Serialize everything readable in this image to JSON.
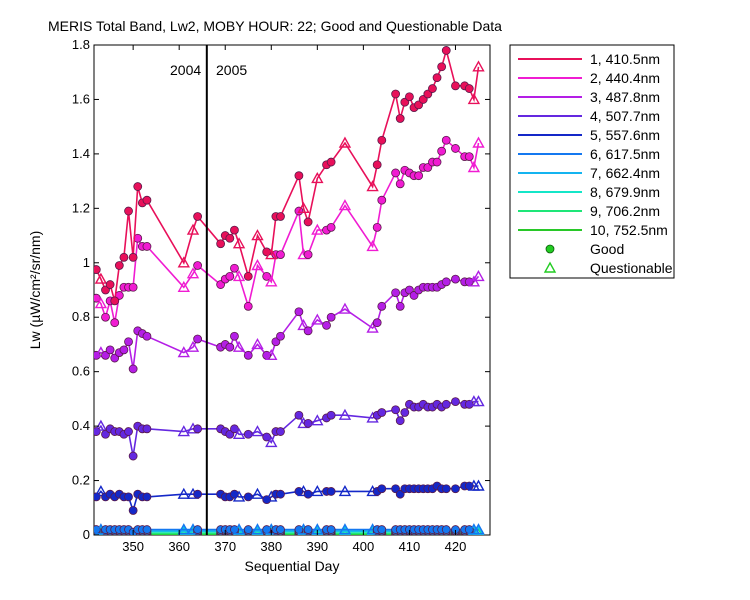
{
  "chart_data": {
    "type": "line",
    "title": "MERIS Total Band,  Lw2, MOBY HOUR: 22;  Good and Questionable Data",
    "xlabel": "Sequential Day",
    "ylabel": "Lw (µW/cm²/sr/nm)",
    "xlim": [
      341.5,
      427.5
    ],
    "ylim": [
      0,
      1.8
    ],
    "xticks": [
      350,
      360,
      370,
      380,
      390,
      400,
      410,
      420
    ],
    "yticks": [
      0,
      0.2,
      0.4,
      0.6,
      0.8,
      1,
      1.2,
      1.4,
      1.6,
      1.8
    ],
    "ytick_labels": [
      "0",
      "0.2",
      "0.4",
      "0.6",
      "0.8",
      "1",
      "1.2",
      "1.4",
      "1.6",
      "1.8"
    ],
    "grid": false,
    "legend_position": "outside-right",
    "year_divider": {
      "x": 366,
      "left_label": "2004",
      "right_label": "2005"
    },
    "x": [
      342,
      343,
      344,
      345,
      346,
      347,
      348,
      349,
      350,
      351,
      352,
      353,
      361,
      363,
      364,
      369,
      370,
      371,
      372,
      373,
      375,
      377,
      379,
      380,
      381,
      382,
      386,
      387,
      388,
      390,
      392,
      393,
      396,
      402,
      403,
      404,
      407,
      408,
      409,
      410,
      411,
      412,
      413,
      414,
      415,
      416,
      417,
      418,
      420,
      422,
      423,
      424,
      425
    ],
    "good_flags": [
      1,
      0,
      1,
      1,
      1,
      1,
      1,
      1,
      1,
      1,
      1,
      1,
      0,
      0,
      1,
      1,
      1,
      1,
      1,
      0,
      1,
      0,
      1,
      0,
      1,
      1,
      1,
      0,
      1,
      0,
      1,
      1,
      0,
      0,
      1,
      1,
      1,
      1,
      1,
      1,
      1,
      1,
      1,
      1,
      1,
      1,
      1,
      1,
      1,
      1,
      1,
      0,
      0
    ],
    "series": [
      {
        "name": "1, 410.5nm",
        "color": "#e8105a",
        "values": [
          0.975,
          0.94,
          0.9,
          0.92,
          0.86,
          0.99,
          1.02,
          1.19,
          1.02,
          1.28,
          1.22,
          1.23,
          1.0,
          1.12,
          1.17,
          1.07,
          1.1,
          1.09,
          1.12,
          1.07,
          0.95,
          1.1,
          1.04,
          1.03,
          1.17,
          1.17,
          1.32,
          1.2,
          1.15,
          1.31,
          1.36,
          1.37,
          1.44,
          1.28,
          1.36,
          1.45,
          1.62,
          1.53,
          1.59,
          1.61,
          1.57,
          1.58,
          1.6,
          1.62,
          1.64,
          1.68,
          1.72,
          1.78,
          1.65,
          1.65,
          1.64,
          1.6,
          1.72
        ]
      },
      {
        "name": "2, 440.4nm",
        "color": "#f01cd2",
        "values": [
          0.87,
          0.85,
          0.8,
          0.86,
          0.78,
          0.88,
          0.91,
          0.91,
          0.91,
          1.09,
          1.06,
          1.06,
          0.91,
          0.96,
          0.99,
          0.92,
          0.94,
          0.95,
          0.98,
          0.95,
          0.84,
          0.99,
          0.95,
          0.93,
          1.03,
          1.03,
          1.19,
          1.03,
          1.03,
          1.12,
          1.12,
          1.13,
          1.21,
          1.06,
          1.13,
          1.23,
          1.33,
          1.29,
          1.34,
          1.33,
          1.32,
          1.32,
          1.35,
          1.35,
          1.37,
          1.37,
          1.41,
          1.45,
          1.42,
          1.39,
          1.39,
          1.35,
          1.44
        ]
      },
      {
        "name": "3, 487.8nm",
        "color": "#b41ee6",
        "values": [
          0.66,
          0.67,
          0.66,
          0.68,
          0.65,
          0.67,
          0.68,
          0.71,
          0.61,
          0.75,
          0.74,
          0.73,
          0.67,
          0.69,
          0.72,
          0.69,
          0.7,
          0.69,
          0.73,
          0.69,
          0.66,
          0.7,
          0.66,
          0.66,
          0.71,
          0.73,
          0.82,
          0.77,
          0.75,
          0.79,
          0.77,
          0.8,
          0.83,
          0.76,
          0.78,
          0.84,
          0.89,
          0.84,
          0.89,
          0.9,
          0.88,
          0.9,
          0.91,
          0.91,
          0.91,
          0.91,
          0.92,
          0.93,
          0.94,
          0.93,
          0.93,
          0.93,
          0.95
        ]
      },
      {
        "name": "4, 507.7nm",
        "color": "#6428e0",
        "values": [
          0.38,
          0.4,
          0.37,
          0.39,
          0.38,
          0.38,
          0.37,
          0.38,
          0.29,
          0.4,
          0.39,
          0.39,
          0.38,
          0.39,
          0.39,
          0.39,
          0.38,
          0.37,
          0.39,
          0.37,
          0.37,
          0.38,
          0.36,
          0.34,
          0.38,
          0.38,
          0.44,
          0.41,
          0.41,
          0.42,
          0.43,
          0.44,
          0.44,
          0.43,
          0.44,
          0.45,
          0.46,
          0.42,
          0.45,
          0.48,
          0.47,
          0.47,
          0.48,
          0.47,
          0.47,
          0.48,
          0.47,
          0.48,
          0.49,
          0.48,
          0.48,
          0.49,
          0.49
        ]
      },
      {
        "name": "5, 557.6nm",
        "color": "#1428c8",
        "values": [
          0.14,
          0.16,
          0.14,
          0.15,
          0.14,
          0.15,
          0.14,
          0.14,
          0.09,
          0.15,
          0.14,
          0.14,
          0.15,
          0.15,
          0.15,
          0.15,
          0.14,
          0.14,
          0.15,
          0.14,
          0.14,
          0.15,
          0.13,
          0.14,
          0.15,
          0.15,
          0.16,
          0.16,
          0.15,
          0.16,
          0.16,
          0.16,
          0.16,
          0.16,
          0.16,
          0.17,
          0.17,
          0.15,
          0.17,
          0.17,
          0.17,
          0.17,
          0.17,
          0.17,
          0.17,
          0.18,
          0.17,
          0.17,
          0.17,
          0.18,
          0.18,
          0.18,
          0.18
        ]
      },
      {
        "name": "6, 617.5nm",
        "color": "#1478f0",
        "values": [
          0.02,
          0.02,
          0.02,
          0.02,
          0.02,
          0.02,
          0.02,
          0.02,
          0.01,
          0.02,
          0.02,
          0.02,
          0.02,
          0.02,
          0.02,
          0.02,
          0.02,
          0.02,
          0.02,
          0.02,
          0.02,
          0.02,
          0.02,
          0.02,
          0.02,
          0.02,
          0.02,
          0.02,
          0.02,
          0.02,
          0.02,
          0.02,
          0.02,
          0.02,
          0.02,
          0.02,
          0.02,
          0.02,
          0.02,
          0.02,
          0.02,
          0.02,
          0.02,
          0.02,
          0.02,
          0.02,
          0.02,
          0.02,
          0.02,
          0.02,
          0.02,
          0.02,
          0.02
        ]
      },
      {
        "name": "7, 662.4nm",
        "color": "#14b4f0",
        "values": [
          0.015,
          0.015,
          0.015,
          0.015,
          0.015,
          0.015,
          0.015,
          0.015,
          0.01,
          0.015,
          0.015,
          0.015,
          0.015,
          0.015,
          0.015,
          0.015,
          0.015,
          0.015,
          0.015,
          0.015,
          0.015,
          0.015,
          0.015,
          0.015,
          0.015,
          0.015,
          0.015,
          0.015,
          0.015,
          0.015,
          0.015,
          0.015,
          0.015,
          0.015,
          0.015,
          0.015,
          0.015,
          0.015,
          0.015,
          0.015,
          0.015,
          0.015,
          0.015,
          0.015,
          0.015,
          0.015,
          0.015,
          0.015,
          0.015,
          0.015,
          0.015,
          0.015,
          0.015
        ]
      },
      {
        "name": "8, 679.9nm",
        "color": "#14e6c8",
        "values": [
          0.012,
          0.012,
          0.012,
          0.012,
          0.012,
          0.012,
          0.012,
          0.012,
          0.01,
          0.012,
          0.012,
          0.012,
          0.012,
          0.012,
          0.012,
          0.012,
          0.012,
          0.012,
          0.012,
          0.012,
          0.012,
          0.012,
          0.012,
          0.012,
          0.012,
          0.012,
          0.012,
          0.012,
          0.012,
          0.012,
          0.012,
          0.012,
          0.012,
          0.012,
          0.012,
          0.012,
          0.012,
          0.012,
          0.012,
          0.012,
          0.012,
          0.012,
          0.012,
          0.012,
          0.012,
          0.012,
          0.012,
          0.012,
          0.012,
          0.012,
          0.012,
          0.012,
          0.012
        ]
      },
      {
        "name": "9, 706.2nm",
        "color": "#1ee678",
        "values": [
          0.006,
          0.006,
          0.006,
          0.006,
          0.006,
          0.006,
          0.006,
          0.006,
          0.005,
          0.006,
          0.006,
          0.006,
          0.006,
          0.006,
          0.006,
          0.006,
          0.006,
          0.006,
          0.006,
          0.006,
          0.006,
          0.006,
          0.006,
          0.006,
          0.006,
          0.006,
          0.006,
          0.006,
          0.006,
          0.006,
          0.006,
          0.006,
          0.006,
          0.006,
          0.006,
          0.006,
          0.006,
          0.006,
          0.006,
          0.006,
          0.006,
          0.006,
          0.006,
          0.006,
          0.006,
          0.006,
          0.006,
          0.006,
          0.006,
          0.006,
          0.006,
          0.006,
          0.006
        ]
      },
      {
        "name": "10, 752.5nm",
        "color": "#28c828",
        "values": [
          0.003,
          0.003,
          0.003,
          0.003,
          0.003,
          0.003,
          0.003,
          0.003,
          0.003,
          0.003,
          0.003,
          0.003,
          0.003,
          0.003,
          0.003,
          0.003,
          0.003,
          0.003,
          0.003,
          0.003,
          0.003,
          0.003,
          0.003,
          0.003,
          0.003,
          0.003,
          0.003,
          0.003,
          0.003,
          0.003,
          0.003,
          0.003,
          0.003,
          0.003,
          0.003,
          0.003,
          0.003,
          0.003,
          0.003,
          0.003,
          0.003,
          0.003,
          0.003,
          0.003,
          0.003,
          0.003,
          0.003,
          0.003,
          0.003,
          0.003,
          0.003,
          0.003,
          0.003
        ]
      }
    ],
    "marker_legend": [
      {
        "label": "Good",
        "marker": "circle",
        "color": "#22cc22"
      },
      {
        "label": "Questionable",
        "marker": "triangle",
        "color": "#22cc22"
      }
    ]
  }
}
